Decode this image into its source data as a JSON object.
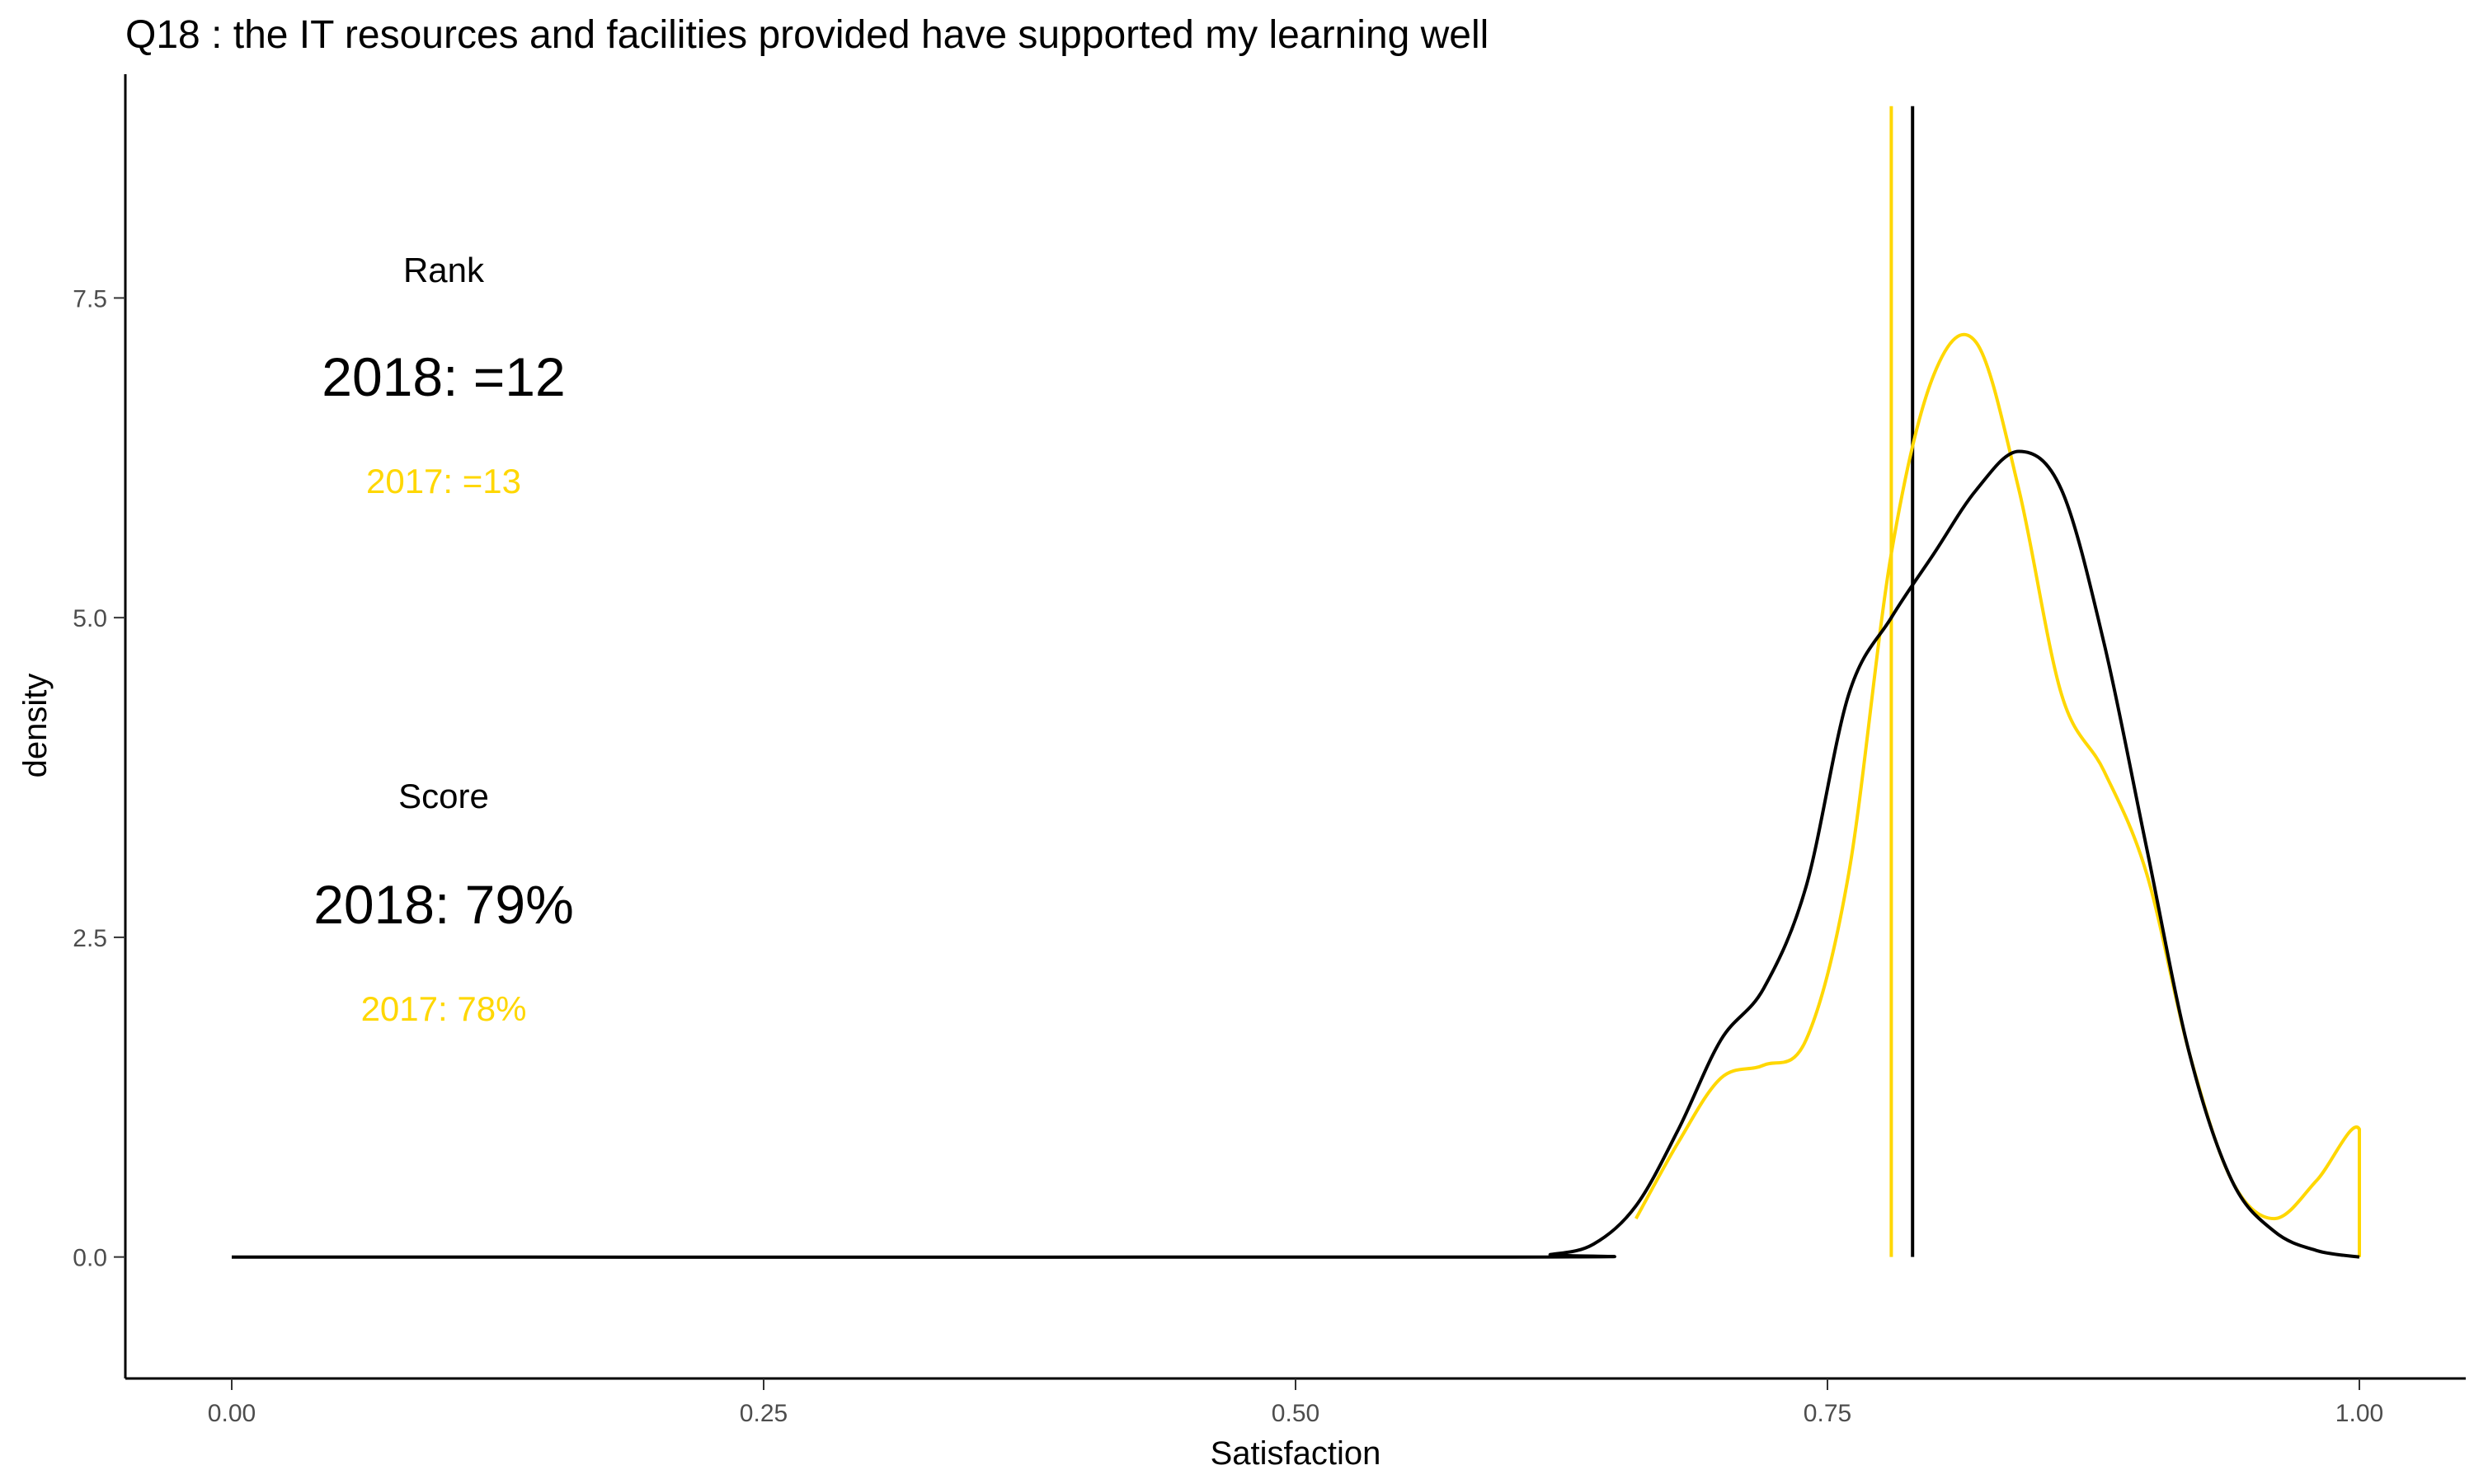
{
  "colors": {
    "current": "#000000",
    "previous": "#FFD700",
    "axis": "#000000",
    "tick_label": "#4d4d4d"
  },
  "chart_data": {
    "type": "line",
    "title": "Q18 :   the IT resources and facilities provided have supported my learning well",
    "xlabel": "Satisfaction",
    "ylabel": "density",
    "xlim": [
      -0.05,
      1.05
    ],
    "ylim": [
      -0.95,
      9.25
    ],
    "x_ticks": [
      "0.00",
      "0.25",
      "0.50",
      "0.75",
      "1.00"
    ],
    "x_tick_values": [
      0,
      0.25,
      0.5,
      0.75,
      1.0
    ],
    "y_ticks": [
      "0.0",
      "2.5",
      "5.0",
      "7.5"
    ],
    "y_tick_values": [
      0,
      2.5,
      5.0,
      7.5
    ],
    "grid": false,
    "legend": "none",
    "series": [
      {
        "name": "2018",
        "color": "#000000",
        "points": [
          [
            0,
            0
          ],
          [
            0.6,
            0
          ],
          [
            0.62,
            0.02
          ],
          [
            0.64,
            0.1
          ],
          [
            0.66,
            0.4
          ],
          [
            0.68,
            1.0
          ],
          [
            0.7,
            1.7
          ],
          [
            0.72,
            2.1
          ],
          [
            0.74,
            2.9
          ],
          [
            0.76,
            4.4
          ],
          [
            0.78,
            5.0
          ],
          [
            0.8,
            5.5
          ],
          [
            0.82,
            6.0
          ],
          [
            0.84,
            6.3
          ],
          [
            0.86,
            6.0
          ],
          [
            0.88,
            4.8
          ],
          [
            0.9,
            3.2
          ],
          [
            0.92,
            1.6
          ],
          [
            0.94,
            0.6
          ],
          [
            0.96,
            0.2
          ],
          [
            0.98,
            0.05
          ],
          [
            1.0,
            0.0
          ]
        ]
      },
      {
        "name": "2017",
        "color": "#FFD700",
        "points": [
          [
            0.66,
            0.3
          ],
          [
            0.68,
            0.9
          ],
          [
            0.7,
            1.4
          ],
          [
            0.72,
            1.5
          ],
          [
            0.74,
            1.7
          ],
          [
            0.76,
            3.0
          ],
          [
            0.78,
            5.5
          ],
          [
            0.8,
            6.9
          ],
          [
            0.82,
            7.15
          ],
          [
            0.84,
            6.0
          ],
          [
            0.86,
            4.4
          ],
          [
            0.88,
            3.8
          ],
          [
            0.9,
            3.0
          ],
          [
            0.92,
            1.6
          ],
          [
            0.94,
            0.6
          ],
          [
            0.96,
            0.3
          ],
          [
            0.98,
            0.6
          ],
          [
            1.0,
            1.0
          ],
          [
            1.0,
            0.0
          ]
        ]
      }
    ],
    "vlines": [
      {
        "series": "2018",
        "x": 0.79,
        "color": "#000000"
      },
      {
        "series": "2017",
        "x": 0.78,
        "color": "#FFD700"
      }
    ]
  },
  "annotations": {
    "rank_header": "Rank",
    "rank_2018": "2018: =12",
    "rank_2017": "2017: =13",
    "score_header": "Score",
    "score_2018": "2018: 79%",
    "score_2017": "2017: 78%"
  }
}
